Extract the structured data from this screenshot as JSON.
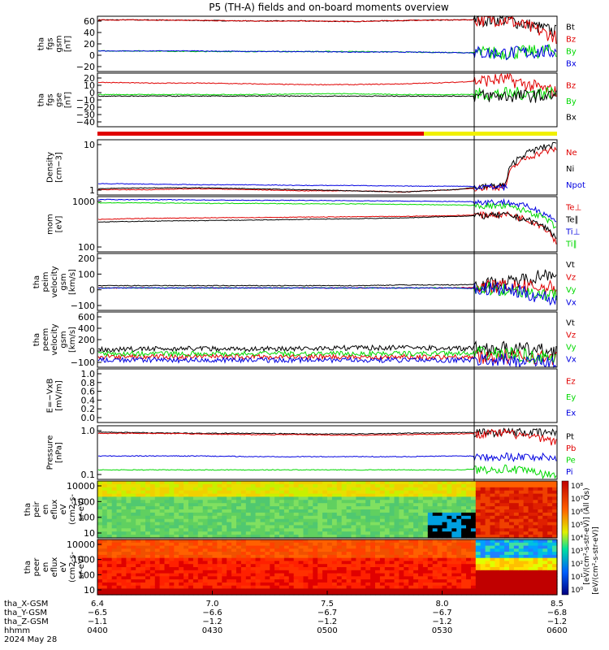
{
  "title": "P5 (TH-A) fields and on-board moments overview",
  "colors": {
    "black": "#000000",
    "red": "#e00000",
    "green": "#00d800",
    "blue": "#0000e0",
    "yellow": "#f0f000"
  },
  "chart_data": [
    {
      "type": "line",
      "ylabel": [
        "tha",
        "fgs",
        "gsm",
        "[nT]"
      ],
      "yticks": [
        "60",
        "40",
        "20",
        "0",
        "−20"
      ],
      "ylim": [
        -30,
        75
      ],
      "series": [
        {
          "name": "Bt",
          "color": "black",
          "values": [
            68,
            68,
            67,
            66,
            66,
            65,
            67,
            68,
            69,
            45
          ]
        },
        {
          "name": "Bz",
          "color": "red",
          "values": [
            68,
            68,
            67,
            66,
            66,
            65,
            67,
            68,
            69,
            35
          ]
        },
        {
          "name": "By",
          "color": "green",
          "values": [
            9,
            9,
            8,
            8,
            8,
            8,
            7,
            6,
            5,
            10
          ]
        },
        {
          "name": "Bx",
          "color": "blue",
          "values": [
            9,
            9,
            9,
            8,
            8,
            7,
            7,
            6,
            5,
            8
          ]
        }
      ]
    },
    {
      "type": "line",
      "ylabel": [
        "tha",
        "fgs",
        "gse",
        "[nT]"
      ],
      "yticks": [
        "20",
        "10",
        "0",
        "−10",
        "−20",
        "−30",
        "−40"
      ],
      "ylim": [
        -45,
        25
      ],
      "series": [
        {
          "name": "Bz",
          "color": "red",
          "values": [
            13,
            12,
            12,
            11,
            10,
            10,
            11,
            13,
            17,
            0
          ]
        },
        {
          "name": "By",
          "color": "green",
          "values": [
            -3,
            -3,
            -3,
            -3,
            -2,
            -2,
            -3,
            -3,
            -2,
            0
          ]
        },
        {
          "name": "Bx",
          "color": "black",
          "values": [
            -5,
            -5,
            -5,
            -5,
            -5,
            -5,
            -5,
            -5,
            -5,
            -5
          ]
        }
      ]
    },
    {
      "type": "line",
      "scale": "log",
      "ylabel": [
        "Density",
        "[cm−3]"
      ],
      "yticks": [
        "10",
        "1"
      ],
      "series": [
        {
          "name": "Ne",
          "color": "red",
          "values": [
            0.5,
            0.5,
            0.55,
            0.5,
            0.45,
            0.45,
            0.4,
            0.5,
            0.7,
            25
          ]
        },
        {
          "name": "Ni",
          "color": "black",
          "values": [
            0.55,
            0.6,
            0.6,
            0.55,
            0.5,
            0.45,
            0.4,
            0.5,
            0.8,
            40
          ]
        },
        {
          "name": "Npot",
          "color": "blue",
          "values": [
            0.9,
            0.85,
            0.8,
            0.8,
            0.75,
            0.75,
            0.7,
            0.7,
            0.65,
            null
          ]
        }
      ]
    },
    {
      "type": "line",
      "scale": "log",
      "ylabel": [
        "mom",
        "[eV]"
      ],
      "yticks": [
        "1000",
        "100"
      ],
      "series": [
        {
          "name": "Te⊥",
          "color": "red",
          "values": [
            450,
            500,
            520,
            540,
            560,
            580,
            600,
            650,
            750,
            30
          ]
        },
        {
          "name": "Te∥",
          "color": "black",
          "values": [
            350,
            380,
            400,
            420,
            450,
            480,
            520,
            600,
            700,
            60
          ]
        },
        {
          "name": "Ti⊥",
          "color": "blue",
          "values": [
            3000,
            3000,
            2900,
            2800,
            2800,
            2700,
            2600,
            2500,
            2400,
            300
          ]
        },
        {
          "name": "Ti∥",
          "color": "green",
          "values": [
            2200,
            2200,
            2100,
            2100,
            2000,
            2000,
            1900,
            1800,
            1600,
            150
          ]
        }
      ]
    },
    {
      "type": "line",
      "ylabel": [
        "tha",
        "peim",
        "velocity",
        "gsm",
        "[km/s]"
      ],
      "yticks": [
        "200",
        "100",
        "0",
        "−100"
      ],
      "ylim": [
        -150,
        230
      ],
      "series": [
        {
          "name": "Vt",
          "color": "black",
          "values": [
            15,
            15,
            15,
            15,
            15,
            15,
            20,
            20,
            30,
            110
          ]
        },
        {
          "name": "Vz",
          "color": "red",
          "values": [
            0,
            0,
            0,
            0,
            0,
            0,
            0,
            0,
            10,
            0
          ]
        },
        {
          "name": "Vy",
          "color": "green",
          "values": [
            0,
            0,
            0,
            0,
            0,
            0,
            0,
            0,
            -10,
            -50
          ]
        },
        {
          "name": "Vx",
          "color": "blue",
          "values": [
            0,
            0,
            0,
            0,
            0,
            0,
            0,
            0,
            -10,
            -80
          ]
        }
      ]
    },
    {
      "type": "line",
      "ylabel": [
        "tha",
        "peem",
        "velocity",
        "gsm",
        "[km/s]"
      ],
      "yticks": [
        "600",
        "400",
        "200",
        "0",
        "−100"
      ],
      "ylim": [
        -150,
        700
      ],
      "series": [
        {
          "name": "Vt",
          "color": "black",
          "values": [
            120,
            130,
            140,
            130,
            140,
            150,
            150,
            140,
            140,
            100
          ]
        },
        {
          "name": "Vz",
          "color": "red",
          "values": [
            10,
            10,
            10,
            10,
            10,
            10,
            10,
            10,
            10,
            0
          ]
        },
        {
          "name": "Vy",
          "color": "green",
          "values": [
            60,
            60,
            60,
            60,
            60,
            60,
            60,
            60,
            60,
            -20
          ]
        },
        {
          "name": "Vx",
          "color": "blue",
          "values": [
            -40,
            -40,
            -40,
            -40,
            -40,
            -40,
            -40,
            -40,
            -40,
            -80
          ]
        }
      ]
    },
    {
      "type": "line",
      "ylabel": [
        "E=−VxB",
        "[mV/m]"
      ],
      "yticks": [
        "1.0",
        "0.8",
        "0.6",
        "0.4",
        "0.2",
        "0.0"
      ],
      "ylim": [
        0,
        1
      ],
      "series": [
        {
          "name": "Ez",
          "color": "red",
          "values": []
        },
        {
          "name": "Ey",
          "color": "green",
          "values": []
        },
        {
          "name": "Ex",
          "color": "blue",
          "values": []
        }
      ]
    },
    {
      "type": "line",
      "scale": "log",
      "ylabel": [
        "Pressure",
        "[nPa]"
      ],
      "yticks": [
        "1.0",
        "0.1"
      ],
      "series": [
        {
          "name": "Pt",
          "color": "black",
          "values": [
            1.25,
            1.2,
            1.15,
            1.15,
            1.1,
            1.1,
            1.15,
            1.2,
            1.3,
            1.2
          ]
        },
        {
          "name": "Pb",
          "color": "red",
          "values": [
            1.15,
            1.15,
            1.1,
            1.05,
            1.05,
            1.0,
            1.05,
            1.1,
            1.2,
            0.6
          ]
        },
        {
          "name": "Pe",
          "color": "green",
          "values": [
            0.08,
            0.08,
            0.08,
            0.08,
            0.08,
            0.08,
            0.08,
            0.08,
            0.09,
            0.05
          ]
        },
        {
          "name": "Pi",
          "color": "blue",
          "values": [
            0.22,
            0.22,
            0.22,
            0.21,
            0.21,
            0.21,
            0.21,
            0.22,
            0.22,
            0.2
          ]
        }
      ]
    },
    {
      "type": "heatmap",
      "ylabel": [
        "tha",
        "peir",
        "en",
        "eflux",
        "eV",
        "(cm2-s-",
        "sr-eV)"
      ],
      "yticks": [
        "10000",
        "1000",
        "100",
        "10"
      ]
    },
    {
      "type": "heatmap",
      "ylabel": [
        "tha",
        "peer",
        "en",
        "eflux",
        "eV",
        "(cm2-s-",
        "sr-eV)"
      ],
      "yticks": [
        "10000",
        "1000",
        "100",
        "10"
      ]
    }
  ],
  "xaxis": {
    "rows": [
      {
        "label": "tha_X-GSM",
        "values": [
          "6.4",
          "7.0",
          "7.5",
          "8.0",
          "8.5"
        ]
      },
      {
        "label": "tha_Y-GSM",
        "values": [
          "−6.5",
          "−6.6",
          "−6.7",
          "−6.7",
          "−6.8"
        ]
      },
      {
        "label": "tha_Z-GSM",
        "values": [
          "−1.1",
          "−1.2",
          "−1.2",
          "−1.2",
          "−1.2"
        ]
      },
      {
        "label": "hhmm",
        "values": [
          "0400",
          "0430",
          "0500",
          "0530",
          "0600"
        ]
      }
    ],
    "date": "2024 May 28"
  },
  "colorbar": {
    "ticks": [
      "10⁸",
      "10⁷",
      "10⁶",
      "10⁵",
      "10⁴",
      "10³",
      "10²",
      "10¹",
      "10⁰"
    ],
    "ticks2": [
      "10⁶",
      "10⁵",
      "10⁴",
      "10³",
      "10²",
      "10¹",
      "10⁰"
    ],
    "label": "[eV/(cm²-s-str-eV)] (All Qs)",
    "label2": "[eV/(cm²-s-str-eV)]"
  }
}
